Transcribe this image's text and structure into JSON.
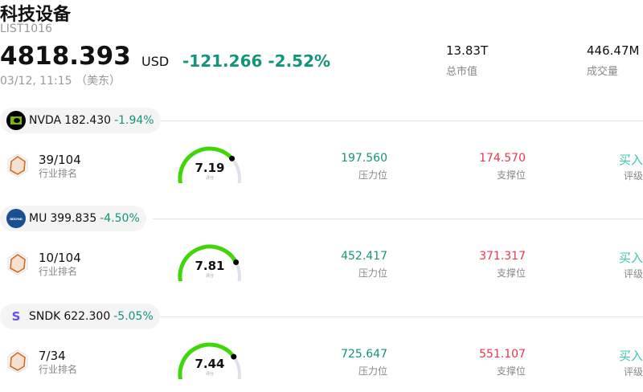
{
  "header": {
    "title": "科技设备",
    "code": "LIST1016",
    "price": "4818.393",
    "currency": "USD",
    "change": "-121.266 -2.52%",
    "time": "03/12, 11:15 （美东）",
    "market_cap": {
      "value": "13.83T",
      "label": "总市值"
    },
    "volume": {
      "value": "446.47M",
      "label": "成交量"
    }
  },
  "colors": {
    "up": "#12957a",
    "down": "#f0334a",
    "gauge": "#3fd70a",
    "buy": "#3ec6b2"
  },
  "labels": {
    "rank": "行业排名",
    "resistance": "压力位",
    "support": "支撑位",
    "rating": "评级",
    "score": "评分"
  },
  "stocks": [
    {
      "ticker": "NVDA",
      "price": "182.430",
      "pct": "-1.94%",
      "rank": "39/104",
      "score": 7.19,
      "score_text": "7.19",
      "resistance": "197.560",
      "support": "174.570",
      "rating": "买入",
      "logo": "nvidia-icon",
      "logo_text": ""
    },
    {
      "ticker": "MU",
      "price": "399.835",
      "pct": "-4.50%",
      "rank": "10/104",
      "score": 7.81,
      "score_text": "7.81",
      "resistance": "452.417",
      "support": "371.317",
      "rating": "买入",
      "logo": "micron-icon",
      "logo_text": ""
    },
    {
      "ticker": "SNDK",
      "price": "622.300",
      "pct": "-5.05%",
      "rank": "7/34",
      "score": 7.44,
      "score_text": "7.44",
      "resistance": "725.647",
      "support": "551.107",
      "rating": "买入",
      "logo": "sandisk-icon",
      "logo_text": "S"
    }
  ]
}
